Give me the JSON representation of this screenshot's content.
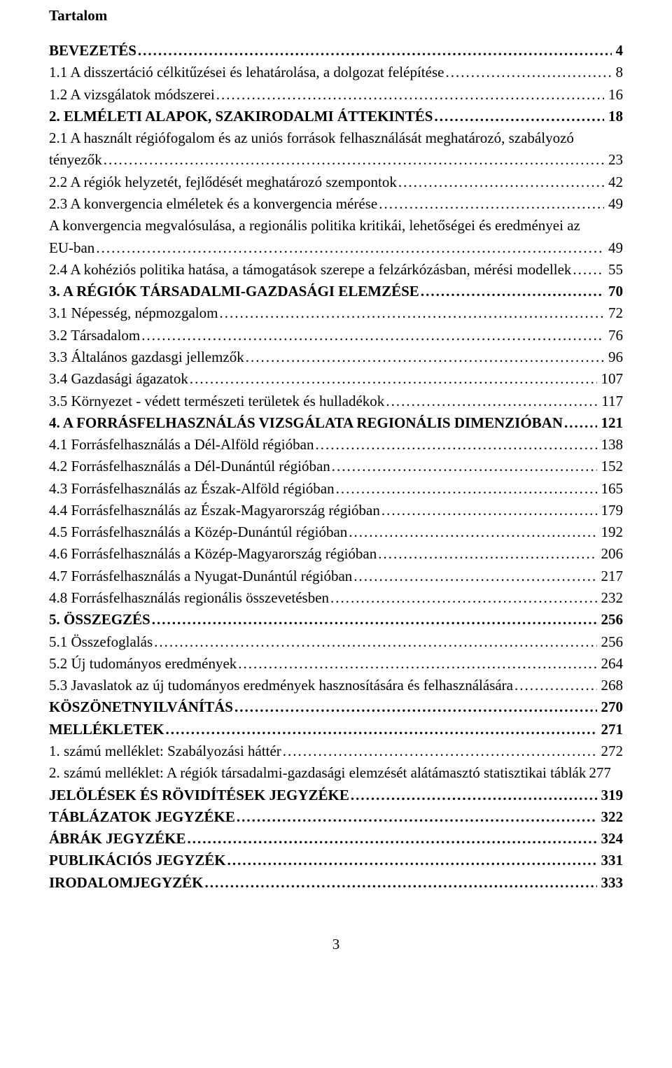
{
  "title": "Tartalom",
  "pageNumber": "3",
  "fontFamily": "Times New Roman",
  "baseFontSize": 21,
  "textColor": "#000000",
  "backgroundColor": "#ffffff",
  "entries": [
    {
      "label": "BEVEZETÉS",
      "page": "4",
      "bold": true
    },
    {
      "label": "1.1 A disszertáció célkitűzései és lehatárolása, a dolgozat felépítése",
      "page": "8",
      "bold": false
    },
    {
      "label": "1.2 A vizsgálatok módszerei",
      "page": "16",
      "bold": false
    },
    {
      "label": "2. ELMÉLETI ALAPOK, SZAKIRODALMI ÁTTEKINTÉS",
      "page": "18",
      "bold": true
    },
    {
      "label": "2.1 A használt régiófogalom és az uniós források felhasználását meghatározó, szabályozó tényezők",
      "page": "23",
      "bold": false,
      "multiline": true,
      "line1": "2.1 A használt régiófogalom és az uniós források felhasználását meghatározó, szabályozó",
      "line2": "tényezők"
    },
    {
      "label": "2.2 A régiók helyzetét, fejlődését meghatározó szempontok",
      "page": "42",
      "bold": false
    },
    {
      "label": "2.3 A konvergencia elméletek és a konvergencia mérése",
      "page": "49",
      "bold": false
    },
    {
      "label": "A konvergencia megvalósulása, a regionális politika kritikái, lehetőségei és eredményei az EU-ban",
      "page": "49",
      "bold": false,
      "multiline": true,
      "line1": "A konvergencia megvalósulása, a regionális politika kritikái, lehetőségei és eredményei az",
      "line2": "EU-ban"
    },
    {
      "label": "2.4 A kohéziós politika hatása, a támogatások szerepe a felzárkózásban, mérési modellek",
      "page": "55",
      "bold": false
    },
    {
      "label": "3. A RÉGIÓK TÁRSADALMI-GAZDASÁGI ELEMZÉSE",
      "page": "70",
      "bold": true
    },
    {
      "label": "3.1 Népesség, népmozgalom",
      "page": "72",
      "bold": false
    },
    {
      "label": "3.2 Társadalom",
      "page": "76",
      "bold": false
    },
    {
      "label": "3.3 Általános gazdasgi jellemzők",
      "page": "96",
      "bold": false
    },
    {
      "label": "3.4 Gazdasági ágazatok",
      "page": "107",
      "bold": false
    },
    {
      "label": "3.5 Környezet - védett természeti területek és hulladékok",
      "page": "117",
      "bold": false
    },
    {
      "label": "4. A FORRÁSFELHASZNÁLÁS VIZSGÁLATA REGIONÁLIS DIMENZIÓBAN",
      "page": "121",
      "bold": true
    },
    {
      "label": "4.1 Forrásfelhasználás a Dél-Alföld régióban",
      "page": "138",
      "bold": false
    },
    {
      "label": "4.2 Forrásfelhasználás a Dél-Dunántúl régióban",
      "page": "152",
      "bold": false
    },
    {
      "label": "4.3 Forrásfelhasználás az Észak-Alföld régióban",
      "page": "165",
      "bold": false
    },
    {
      "label": "4.4 Forrásfelhasználás az Észak-Magyarország régióban",
      "page": "179",
      "bold": false
    },
    {
      "label": "4.5 Forrásfelhasználás a Közép-Dunántúl régióban",
      "page": "192",
      "bold": false
    },
    {
      "label": "4.6 Forrásfelhasználás a Közép-Magyarország régióban",
      "page": "206",
      "bold": false
    },
    {
      "label": "4.7 Forrásfelhasználás a Nyugat-Dunántúl régióban",
      "page": "217",
      "bold": false
    },
    {
      "label": "4.8 Forrásfelhasználás regionális összevetésben",
      "page": "232",
      "bold": false
    },
    {
      "label": "5. ÖSSZEGZÉS",
      "page": "256",
      "bold": true
    },
    {
      "label": "5.1 Összefoglalás",
      "page": "256",
      "bold": false
    },
    {
      "label": "5.2 Új tudományos eredmények",
      "page": "264",
      "bold": false
    },
    {
      "label": "5.3 Javaslatok az új tudományos eredmények hasznosítására és felhasználására",
      "page": "268",
      "bold": false
    },
    {
      "label": "KÖSZÖNETNYILVÁNÍTÁS",
      "page": "270",
      "bold": true
    },
    {
      "label": "MELLÉKLETEK",
      "page": "271",
      "bold": true
    },
    {
      "label": "1. számú melléklet: Szabályozási háttér",
      "page": "272",
      "bold": false
    },
    {
      "label": "2. számú melléklet: A régiók társadalmi-gazdasági elemzését alátámasztó statisztikai táblák",
      "page": "277",
      "bold": false,
      "nodots": true
    },
    {
      "label": "JELÖLÉSEK ÉS RÖVIDÍTÉSEK JEGYZÉKE",
      "page": "319",
      "bold": true
    },
    {
      "label": "TÁBLÁZATOK JEGYZÉKE",
      "page": "322",
      "bold": true
    },
    {
      "label": "ÁBRÁK JEGYZÉKE",
      "page": "324",
      "bold": true
    },
    {
      "label": "PUBLIKÁCIÓS JEGYZÉK",
      "page": "331",
      "bold": true
    },
    {
      "label": "IRODALOMJEGYZÉK",
      "page": "333",
      "bold": true
    }
  ]
}
